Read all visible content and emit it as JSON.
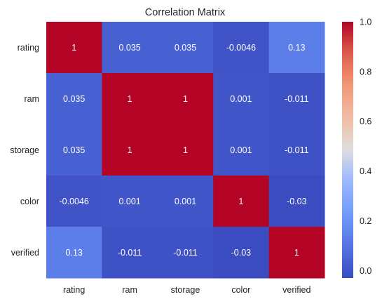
{
  "chart_data": {
    "type": "heatmap",
    "title": "Correlation Matrix",
    "row_labels": [
      "rating",
      "ram",
      "storage",
      "color",
      "verified"
    ],
    "col_labels": [
      "rating",
      "ram",
      "storage",
      "color",
      "verified"
    ],
    "values": [
      [
        1,
        0.035,
        0.035,
        -0.0046,
        0.13
      ],
      [
        0.035,
        1,
        1,
        0.001,
        -0.011
      ],
      [
        0.035,
        1,
        1,
        0.001,
        -0.011
      ],
      [
        -0.0046,
        0.001,
        0.001,
        1,
        -0.03
      ],
      [
        0.13,
        -0.011,
        -0.011,
        -0.03,
        1
      ]
    ],
    "cell_labels": [
      [
        "1",
        "0.035",
        "0.035",
        "-0.0046",
        "0.13"
      ],
      [
        "0.035",
        "1",
        "1",
        "0.001",
        "-0.011"
      ],
      [
        "0.035",
        "1",
        "1",
        "0.001",
        "-0.011"
      ],
      [
        "-0.0046",
        "0.001",
        "0.001",
        "1",
        "-0.03"
      ],
      [
        "0.13",
        "-0.011",
        "-0.011",
        "-0.03",
        "1"
      ]
    ],
    "colormap": "coolwarm",
    "colorbar": {
      "range": [
        -0.03,
        1.0
      ],
      "ticks": [
        0.0,
        0.2,
        0.4,
        0.6,
        0.8,
        1.0
      ],
      "tick_labels": [
        "0.0",
        "0.2",
        "0.4",
        "0.6",
        "0.8",
        "1.0"
      ]
    },
    "grid": false
  }
}
